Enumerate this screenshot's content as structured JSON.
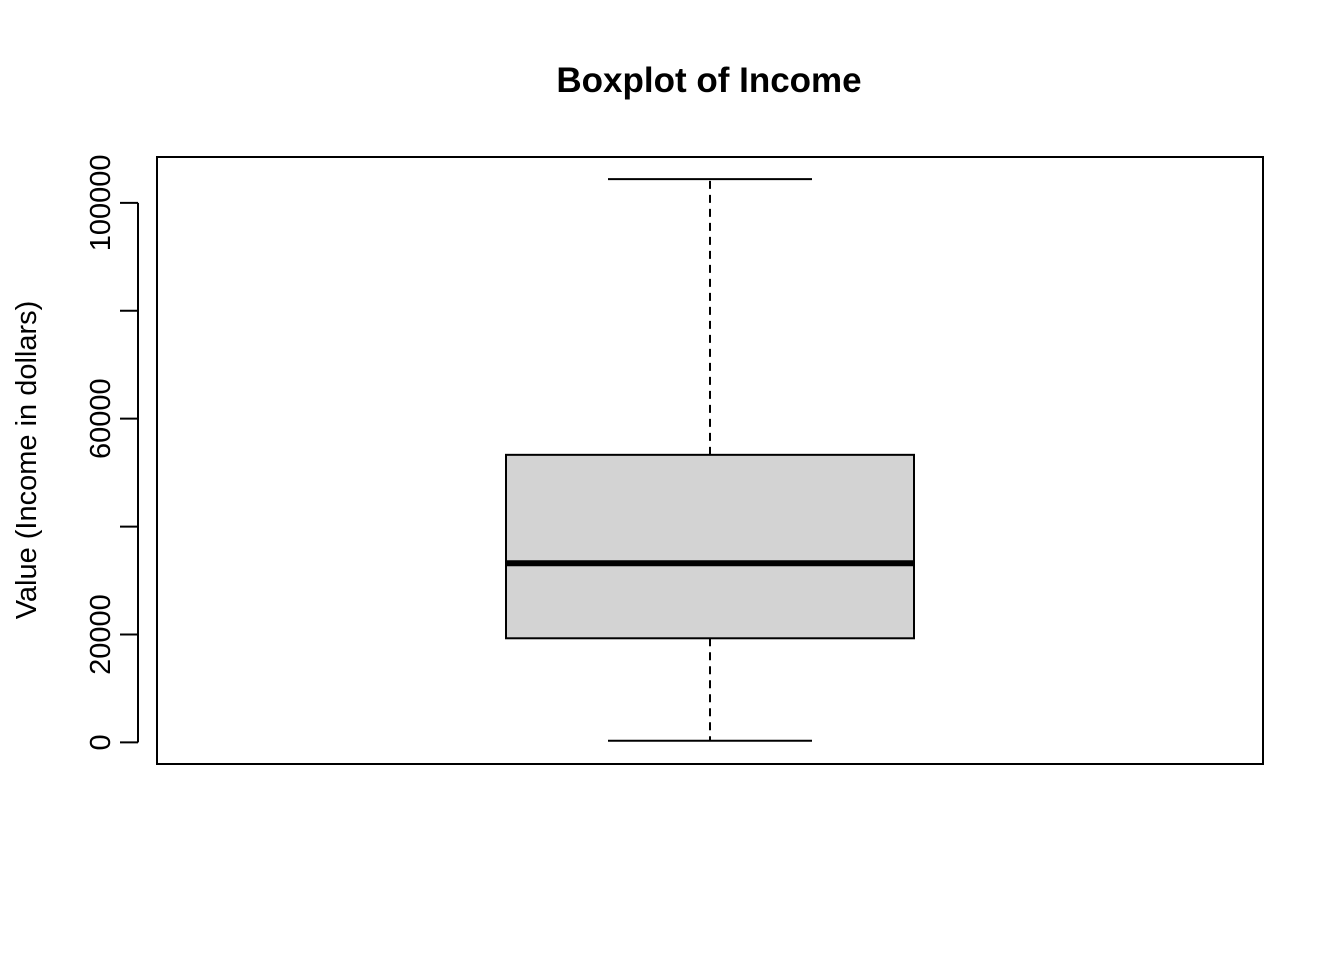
{
  "chart_data": {
    "type": "boxplot",
    "title": "Boxplot of Income",
    "xlabel": "",
    "ylabel": "Value (Income in dollars)",
    "ylim": [
      -4000,
      108500
    ],
    "y_ticks": [
      0,
      20000,
      40000,
      60000,
      80000,
      100000
    ],
    "y_tick_labels": [
      "0",
      "20000",
      "",
      "60000",
      "",
      "100000"
    ],
    "grid": false,
    "box": {
      "whisker_low": 300,
      "q1": 19300,
      "median": 33200,
      "q3": 53300,
      "whisker_high": 104400
    },
    "colors": {
      "box_fill": "#d3d3d3",
      "line": "#000000",
      "background": "#ffffff"
    }
  }
}
